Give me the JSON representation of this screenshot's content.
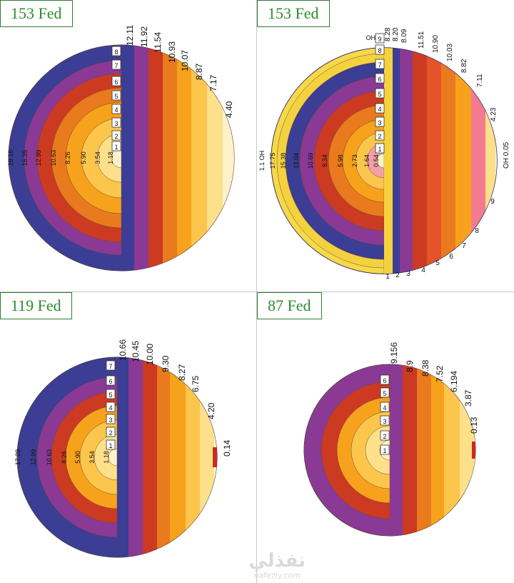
{
  "panels": [
    {
      "title": "153 Fed",
      "left_labels": [
        "1.18",
        "3.54",
        "5.90",
        "8.26",
        "10.63",
        "12.99",
        "15.35",
        "19.16"
      ],
      "ring_numbers": [
        "1",
        "2",
        "3",
        "4",
        "5",
        "6",
        "7",
        "8"
      ],
      "right_values": [
        "12.11",
        "11.92",
        "11.54",
        "10.93",
        "10.07",
        "8.87",
        "7.17",
        "4.40"
      ]
    },
    {
      "title": "153 Fed",
      "left_labels": [
        "0.54",
        "1.64",
        "2.73",
        "5.98",
        "8.34",
        "10.69",
        "13.04",
        "15.38",
        "17.75",
        "1.1 OH"
      ],
      "ring_numbers": [
        "1",
        "2",
        "3",
        "4",
        "5",
        "6",
        "7",
        "8",
        "9",
        "OH"
      ],
      "right_values": [
        "8.28",
        "8.20",
        "8.09",
        "11.51",
        "10.90",
        "10.03",
        "8.82",
        "7.11",
        "4.23",
        "OH 0.05"
      ],
      "bottom_numbers": [
        "1",
        "2",
        "3",
        "4",
        "5",
        "6",
        "7",
        "8",
        "9"
      ]
    },
    {
      "title": "119 Fed",
      "left_labels": [
        "1.18",
        "3.54",
        "5.90",
        "8.26",
        "10.63",
        "12.99",
        "17.28"
      ],
      "ring_numbers": [
        "1",
        "2",
        "3",
        "4",
        "5",
        "6",
        "7"
      ],
      "right_values": [
        "10.66",
        "10.45",
        "10.00",
        "9.30",
        "8.27",
        "6.75",
        "4.20",
        "0.14"
      ]
    },
    {
      "title": "87 Fed",
      "left_labels": [],
      "ring_numbers": [
        "1",
        "2",
        "3",
        "4",
        "5",
        "6"
      ],
      "right_values": [
        "9.156",
        "8.9",
        "8.38",
        "7.52",
        "6.194",
        "3.87",
        "0.13"
      ]
    }
  ],
  "watermark": {
    "arabic": "نفذلي",
    "latin": "nafezly.com"
  },
  "colors": {
    "title_green": "#2e8b2e",
    "palette": [
      "#fff1c9",
      "#fde08a",
      "#fcc64d",
      "#f7a21c",
      "#ea7a1e",
      "#cc3a22",
      "#c82a4f",
      "#8a3a95",
      "#3c3d94",
      "#f4d23f"
    ]
  }
}
